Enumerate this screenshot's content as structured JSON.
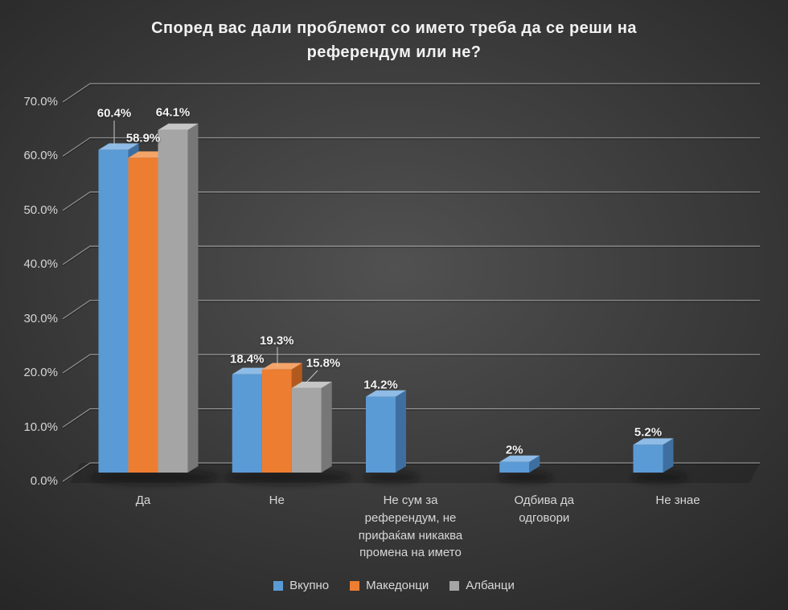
{
  "chart_data": {
    "type": "bar",
    "variant": "3d-clustered-column",
    "title": "Според вас дали проблемот со името треба да се реши на референдум или не?",
    "categories": [
      "Да",
      "Не",
      "Не сум за референдум, не прифаќам никаква промена на името",
      "Одбива да одговори",
      "Не знае"
    ],
    "series": [
      {
        "name": "Вкупно",
        "color": "#5B9BD5",
        "values": [
          60.4,
          18.4,
          14.2,
          2,
          5.2
        ],
        "labels": [
          "60.4%",
          "18.4%",
          "14.2%",
          "2%",
          "5.2%"
        ]
      },
      {
        "name": "Македонци",
        "color": "#ED7D31",
        "values": [
          58.9,
          19.3,
          null,
          null,
          null
        ],
        "labels": [
          "58.9%",
          "19.3%",
          null,
          null,
          null
        ]
      },
      {
        "name": "Албанци",
        "color": "#A5A5A5",
        "values": [
          64.1,
          15.8,
          null,
          null,
          null
        ],
        "labels": [
          "64.1%",
          "15.8%",
          null,
          null,
          null
        ]
      }
    ],
    "y_axis": {
      "min": 0,
      "max": 70,
      "step": 10,
      "tick_labels": [
        "0.0%",
        "10.0%",
        "20.0%",
        "30.0%",
        "40.0%",
        "50.0%",
        "60.0%",
        "70.0%"
      ]
    },
    "grid": true,
    "legend_position": "bottom",
    "background_color": "#3c3c3c",
    "text_color": "#d6d6d6"
  }
}
